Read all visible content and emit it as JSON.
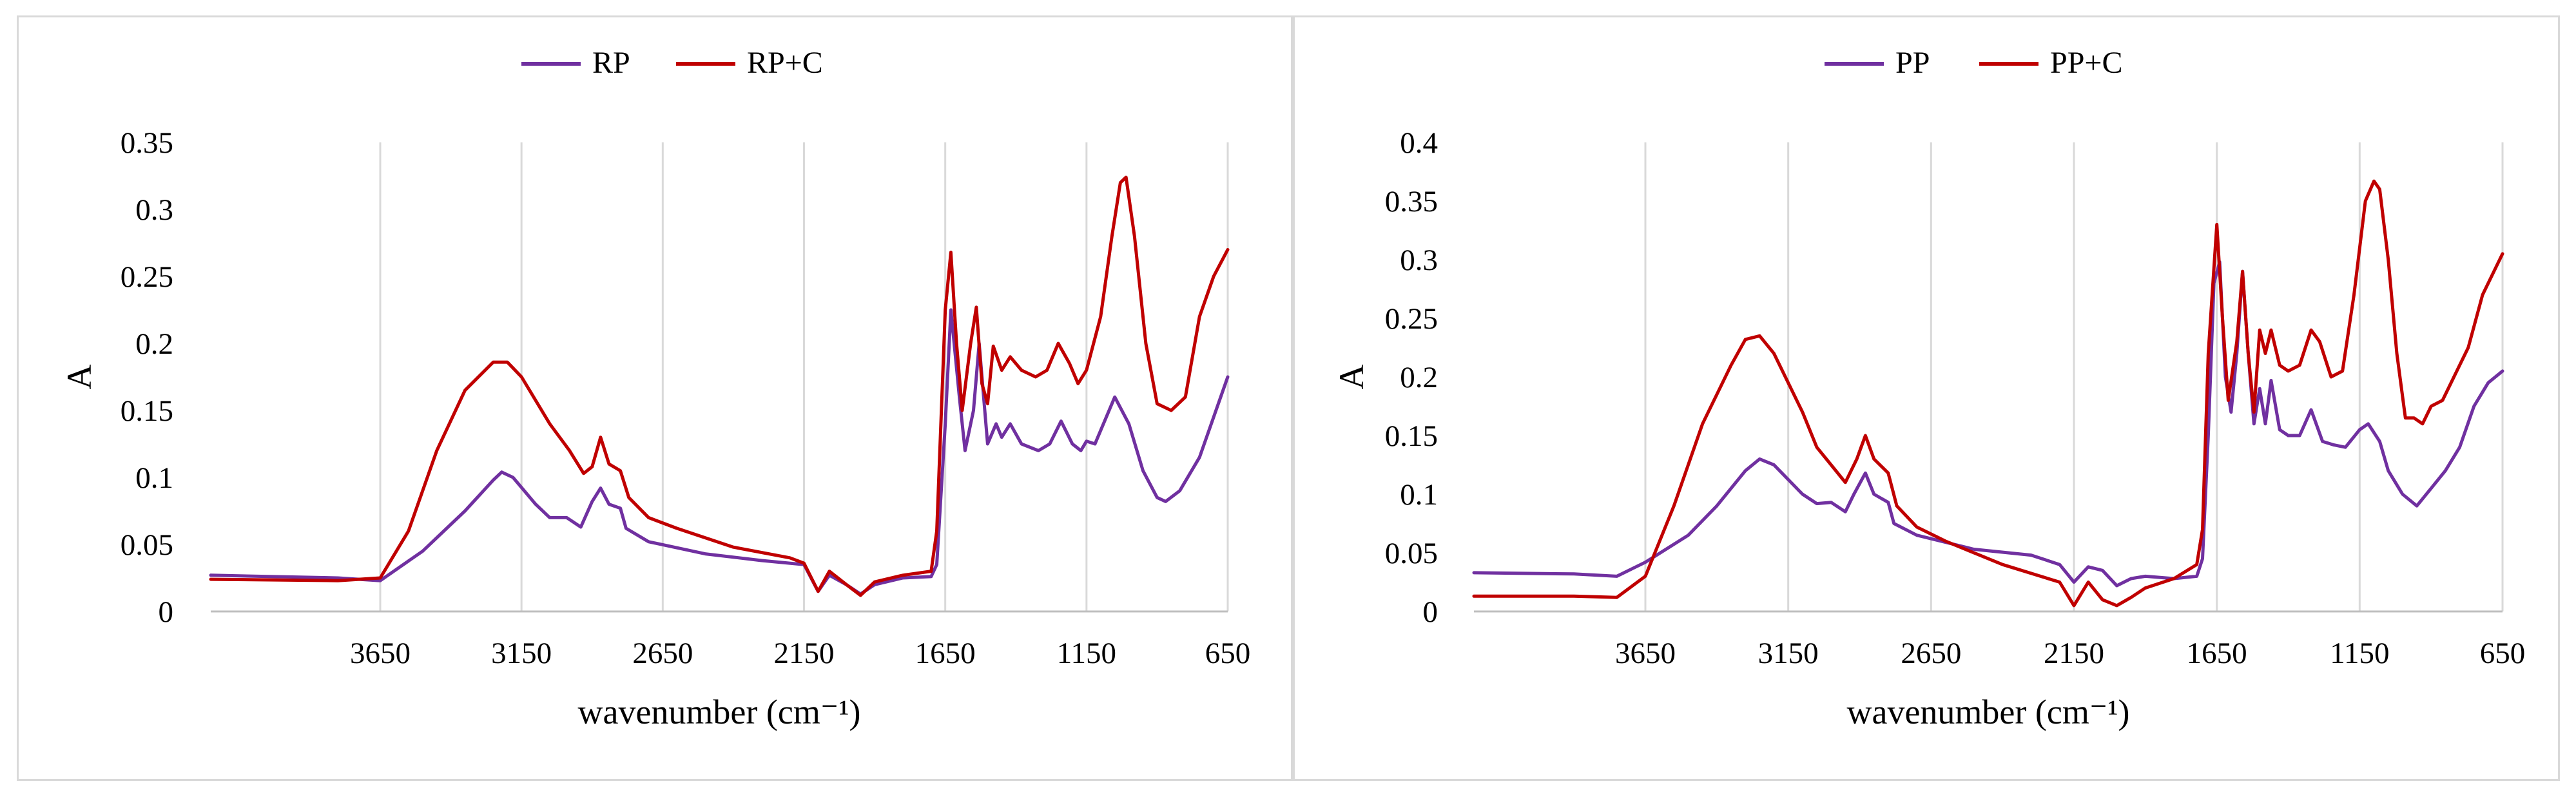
{
  "chart_data": [
    {
      "type": "line",
      "xlabel": "wavenumber (cm⁻¹)",
      "ylabel": "A",
      "xlim": [
        4250,
        650
      ],
      "ylim": [
        0,
        0.35
      ],
      "x_ticks": [
        "3650",
        "3150",
        "2650",
        "2150",
        "1650",
        "1150",
        "650"
      ],
      "x_tick_values": [
        3650,
        3150,
        2650,
        2150,
        1650,
        1150,
        650
      ],
      "y_ticks": [
        "0",
        "0.05",
        "0.1",
        "0.15",
        "0.2",
        "0.25",
        "0.3",
        "0.35"
      ],
      "y_tick_values": [
        0,
        0.05,
        0.1,
        0.15,
        0.2,
        0.25,
        0.3,
        0.35
      ],
      "grid": "vertical",
      "x_reversed": true,
      "legend_position": "top-center",
      "series": [
        {
          "name": "RP",
          "color": "#7030a0",
          "points": [
            [
              4250,
              0.027
            ],
            [
              3800,
              0.025
            ],
            [
              3650,
              0.023
            ],
            [
              3500,
              0.045
            ],
            [
              3350,
              0.075
            ],
            [
              3250,
              0.098
            ],
            [
              3220,
              0.104
            ],
            [
              3180,
              0.1
            ],
            [
              3100,
              0.08
            ],
            [
              3050,
              0.07
            ],
            [
              2990,
              0.07
            ],
            [
              2940,
              0.063
            ],
            [
              2900,
              0.082
            ],
            [
              2870,
              0.092
            ],
            [
              2840,
              0.08
            ],
            [
              2800,
              0.077
            ],
            [
              2780,
              0.062
            ],
            [
              2700,
              0.052
            ],
            [
              2500,
              0.043
            ],
            [
              2300,
              0.038
            ],
            [
              2150,
              0.035
            ],
            [
              2100,
              0.015
            ],
            [
              2060,
              0.027
            ],
            [
              2000,
              0.02
            ],
            [
              1950,
              0.013
            ],
            [
              1900,
              0.02
            ],
            [
              1800,
              0.025
            ],
            [
              1700,
              0.026
            ],
            [
              1680,
              0.035
            ],
            [
              1650,
              0.14
            ],
            [
              1630,
              0.225
            ],
            [
              1600,
              0.16
            ],
            [
              1580,
              0.12
            ],
            [
              1550,
              0.15
            ],
            [
              1530,
              0.2
            ],
            [
              1510,
              0.15
            ],
            [
              1500,
              0.125
            ],
            [
              1470,
              0.14
            ],
            [
              1450,
              0.13
            ],
            [
              1420,
              0.14
            ],
            [
              1380,
              0.125
            ],
            [
              1320,
              0.12
            ],
            [
              1280,
              0.125
            ],
            [
              1240,
              0.142
            ],
            [
              1200,
              0.125
            ],
            [
              1170,
              0.12
            ],
            [
              1150,
              0.127
            ],
            [
              1120,
              0.125
            ],
            [
              1050,
              0.16
            ],
            [
              1000,
              0.14
            ],
            [
              950,
              0.105
            ],
            [
              900,
              0.085
            ],
            [
              870,
              0.082
            ],
            [
              820,
              0.09
            ],
            [
              750,
              0.115
            ],
            [
              700,
              0.145
            ],
            [
              650,
              0.175
            ]
          ]
        },
        {
          "name": "RP+C",
          "color": "#c00000",
          "points": [
            [
              4250,
              0.024
            ],
            [
              3800,
              0.023
            ],
            [
              3650,
              0.025
            ],
            [
              3550,
              0.06
            ],
            [
              3450,
              0.12
            ],
            [
              3350,
              0.165
            ],
            [
              3250,
              0.186
            ],
            [
              3200,
              0.186
            ],
            [
              3150,
              0.175
            ],
            [
              3050,
              0.14
            ],
            [
              2980,
              0.12
            ],
            [
              2930,
              0.103
            ],
            [
              2900,
              0.108
            ],
            [
              2870,
              0.13
            ],
            [
              2840,
              0.11
            ],
            [
              2800,
              0.105
            ],
            [
              2770,
              0.085
            ],
            [
              2700,
              0.07
            ],
            [
              2600,
              0.062
            ],
            [
              2400,
              0.048
            ],
            [
              2200,
              0.04
            ],
            [
              2150,
              0.036
            ],
            [
              2100,
              0.015
            ],
            [
              2060,
              0.03
            ],
            [
              2000,
              0.02
            ],
            [
              1950,
              0.012
            ],
            [
              1900,
              0.022
            ],
            [
              1800,
              0.027
            ],
            [
              1700,
              0.03
            ],
            [
              1680,
              0.06
            ],
            [
              1650,
              0.225
            ],
            [
              1630,
              0.268
            ],
            [
              1610,
              0.2
            ],
            [
              1590,
              0.15
            ],
            [
              1560,
              0.2
            ],
            [
              1540,
              0.227
            ],
            [
              1520,
              0.17
            ],
            [
              1500,
              0.155
            ],
            [
              1480,
              0.198
            ],
            [
              1450,
              0.18
            ],
            [
              1420,
              0.19
            ],
            [
              1380,
              0.18
            ],
            [
              1330,
              0.175
            ],
            [
              1290,
              0.18
            ],
            [
              1250,
              0.2
            ],
            [
              1210,
              0.185
            ],
            [
              1180,
              0.17
            ],
            [
              1150,
              0.18
            ],
            [
              1100,
              0.22
            ],
            [
              1060,
              0.28
            ],
            [
              1030,
              0.32
            ],
            [
              1010,
              0.324
            ],
            [
              980,
              0.28
            ],
            [
              940,
              0.2
            ],
            [
              900,
              0.155
            ],
            [
              850,
              0.15
            ],
            [
              800,
              0.16
            ],
            [
              750,
              0.22
            ],
            [
              700,
              0.25
            ],
            [
              650,
              0.27
            ]
          ]
        }
      ]
    },
    {
      "type": "line",
      "xlabel": "wavenumber (cm⁻¹)",
      "ylabel": "A",
      "xlim": [
        4250,
        650
      ],
      "ylim": [
        0,
        0.4
      ],
      "x_ticks": [
        "3650",
        "3150",
        "2650",
        "2150",
        "1650",
        "1150",
        "650"
      ],
      "x_tick_values": [
        3650,
        3150,
        2650,
        2150,
        1650,
        1150,
        650
      ],
      "y_ticks": [
        "0",
        "0.05",
        "0.1",
        "0.15",
        "0.2",
        "0.25",
        "0.3",
        "0.35",
        "0.4"
      ],
      "y_tick_values": [
        0,
        0.05,
        0.1,
        0.15,
        0.2,
        0.25,
        0.3,
        0.35,
        0.4
      ],
      "grid": "vertical",
      "x_reversed": true,
      "legend_position": "top-center",
      "series": [
        {
          "name": "PP",
          "color": "#7030a0",
          "points": [
            [
              4250,
              0.033
            ],
            [
              3900,
              0.032
            ],
            [
              3750,
              0.03
            ],
            [
              3650,
              0.042
            ],
            [
              3500,
              0.065
            ],
            [
              3400,
              0.09
            ],
            [
              3300,
              0.12
            ],
            [
              3250,
              0.13
            ],
            [
              3200,
              0.125
            ],
            [
              3100,
              0.1
            ],
            [
              3050,
              0.092
            ],
            [
              3000,
              0.093
            ],
            [
              2950,
              0.085
            ],
            [
              2920,
              0.1
            ],
            [
              2880,
              0.118
            ],
            [
              2850,
              0.1
            ],
            [
              2800,
              0.093
            ],
            [
              2780,
              0.075
            ],
            [
              2700,
              0.065
            ],
            [
              2500,
              0.053
            ],
            [
              2300,
              0.048
            ],
            [
              2200,
              0.04
            ],
            [
              2150,
              0.025
            ],
            [
              2100,
              0.038
            ],
            [
              2050,
              0.035
            ],
            [
              2000,
              0.022
            ],
            [
              1950,
              0.028
            ],
            [
              1900,
              0.03
            ],
            [
              1800,
              0.028
            ],
            [
              1720,
              0.03
            ],
            [
              1700,
              0.045
            ],
            [
              1680,
              0.15
            ],
            [
              1660,
              0.28
            ],
            [
              1640,
              0.298
            ],
            [
              1620,
              0.2
            ],
            [
              1600,
              0.17
            ],
            [
              1580,
              0.22
            ],
            [
              1560,
              0.29
            ],
            [
              1540,
              0.22
            ],
            [
              1520,
              0.16
            ],
            [
              1500,
              0.19
            ],
            [
              1480,
              0.16
            ],
            [
              1460,
              0.197
            ],
            [
              1430,
              0.155
            ],
            [
              1400,
              0.15
            ],
            [
              1360,
              0.15
            ],
            [
              1320,
              0.172
            ],
            [
              1280,
              0.145
            ],
            [
              1240,
              0.142
            ],
            [
              1200,
              0.14
            ],
            [
              1150,
              0.155
            ],
            [
              1120,
              0.16
            ],
            [
              1080,
              0.145
            ],
            [
              1050,
              0.12
            ],
            [
              1000,
              0.1
            ],
            [
              950,
              0.09
            ],
            [
              900,
              0.105
            ],
            [
              850,
              0.12
            ],
            [
              800,
              0.14
            ],
            [
              750,
              0.175
            ],
            [
              700,
              0.195
            ],
            [
              650,
              0.205
            ]
          ]
        },
        {
          "name": "PP+C",
          "color": "#c00000",
          "points": [
            [
              4250,
              0.013
            ],
            [
              3900,
              0.013
            ],
            [
              3750,
              0.012
            ],
            [
              3650,
              0.03
            ],
            [
              3550,
              0.09
            ],
            [
              3450,
              0.16
            ],
            [
              3350,
              0.21
            ],
            [
              3300,
              0.232
            ],
            [
              3250,
              0.235
            ],
            [
              3200,
              0.22
            ],
            [
              3100,
              0.17
            ],
            [
              3050,
              0.14
            ],
            [
              3000,
              0.125
            ],
            [
              2950,
              0.11
            ],
            [
              2910,
              0.13
            ],
            [
              2880,
              0.15
            ],
            [
              2850,
              0.13
            ],
            [
              2800,
              0.118
            ],
            [
              2770,
              0.09
            ],
            [
              2700,
              0.072
            ],
            [
              2600,
              0.06
            ],
            [
              2400,
              0.04
            ],
            [
              2200,
              0.025
            ],
            [
              2150,
              0.005
            ],
            [
              2100,
              0.025
            ],
            [
              2050,
              0.01
            ],
            [
              2000,
              0.005
            ],
            [
              1950,
              0.012
            ],
            [
              1900,
              0.02
            ],
            [
              1800,
              0.028
            ],
            [
              1720,
              0.04
            ],
            [
              1700,
              0.07
            ],
            [
              1680,
              0.22
            ],
            [
              1650,
              0.33
            ],
            [
              1630,
              0.25
            ],
            [
              1610,
              0.18
            ],
            [
              1580,
              0.23
            ],
            [
              1560,
              0.29
            ],
            [
              1540,
              0.22
            ],
            [
              1520,
              0.17
            ],
            [
              1500,
              0.24
            ],
            [
              1480,
              0.22
            ],
            [
              1460,
              0.24
            ],
            [
              1430,
              0.21
            ],
            [
              1400,
              0.205
            ],
            [
              1360,
              0.21
            ],
            [
              1320,
              0.24
            ],
            [
              1290,
              0.23
            ],
            [
              1250,
              0.2
            ],
            [
              1210,
              0.205
            ],
            [
              1170,
              0.27
            ],
            [
              1130,
              0.35
            ],
            [
              1100,
              0.367
            ],
            [
              1080,
              0.36
            ],
            [
              1050,
              0.3
            ],
            [
              1020,
              0.22
            ],
            [
              990,
              0.165
            ],
            [
              960,
              0.165
            ],
            [
              930,
              0.16
            ],
            [
              900,
              0.175
            ],
            [
              860,
              0.18
            ],
            [
              820,
              0.2
            ],
            [
              770,
              0.225
            ],
            [
              720,
              0.27
            ],
            [
              680,
              0.29
            ],
            [
              650,
              0.305
            ]
          ]
        }
      ]
    }
  ]
}
